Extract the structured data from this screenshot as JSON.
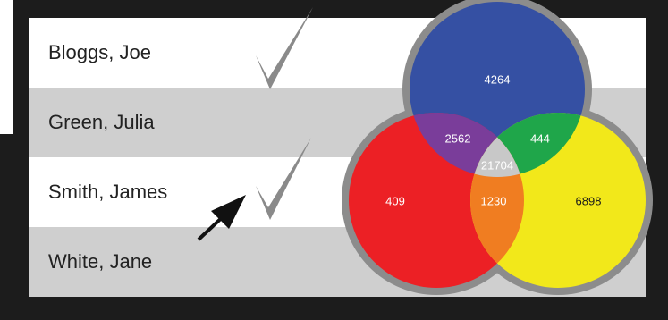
{
  "names": [
    "Bloggs, Joe",
    "Green, Julia",
    "Smith, James",
    "White, Jane"
  ],
  "checked": [
    true,
    false,
    true,
    false
  ],
  "colors": {
    "background": "#1c1c1c",
    "row_white": "#ffffff",
    "row_gray": "#cfcfcf",
    "blue": "#3550a3",
    "red": "#ec2025",
    "yellow": "#f2e81a",
    "purple": "#7a3d9a",
    "green": "#1fa64a",
    "orange": "#f07d21",
    "center": "#c8c8c8",
    "ring": "#8c8c8c"
  },
  "venn": {
    "blue_only": "4264",
    "red_only": "409",
    "yellow_only": "6898",
    "blue_red": "2562",
    "blue_yellow": "444",
    "red_yellow": "1230",
    "all_three": "21704"
  }
}
